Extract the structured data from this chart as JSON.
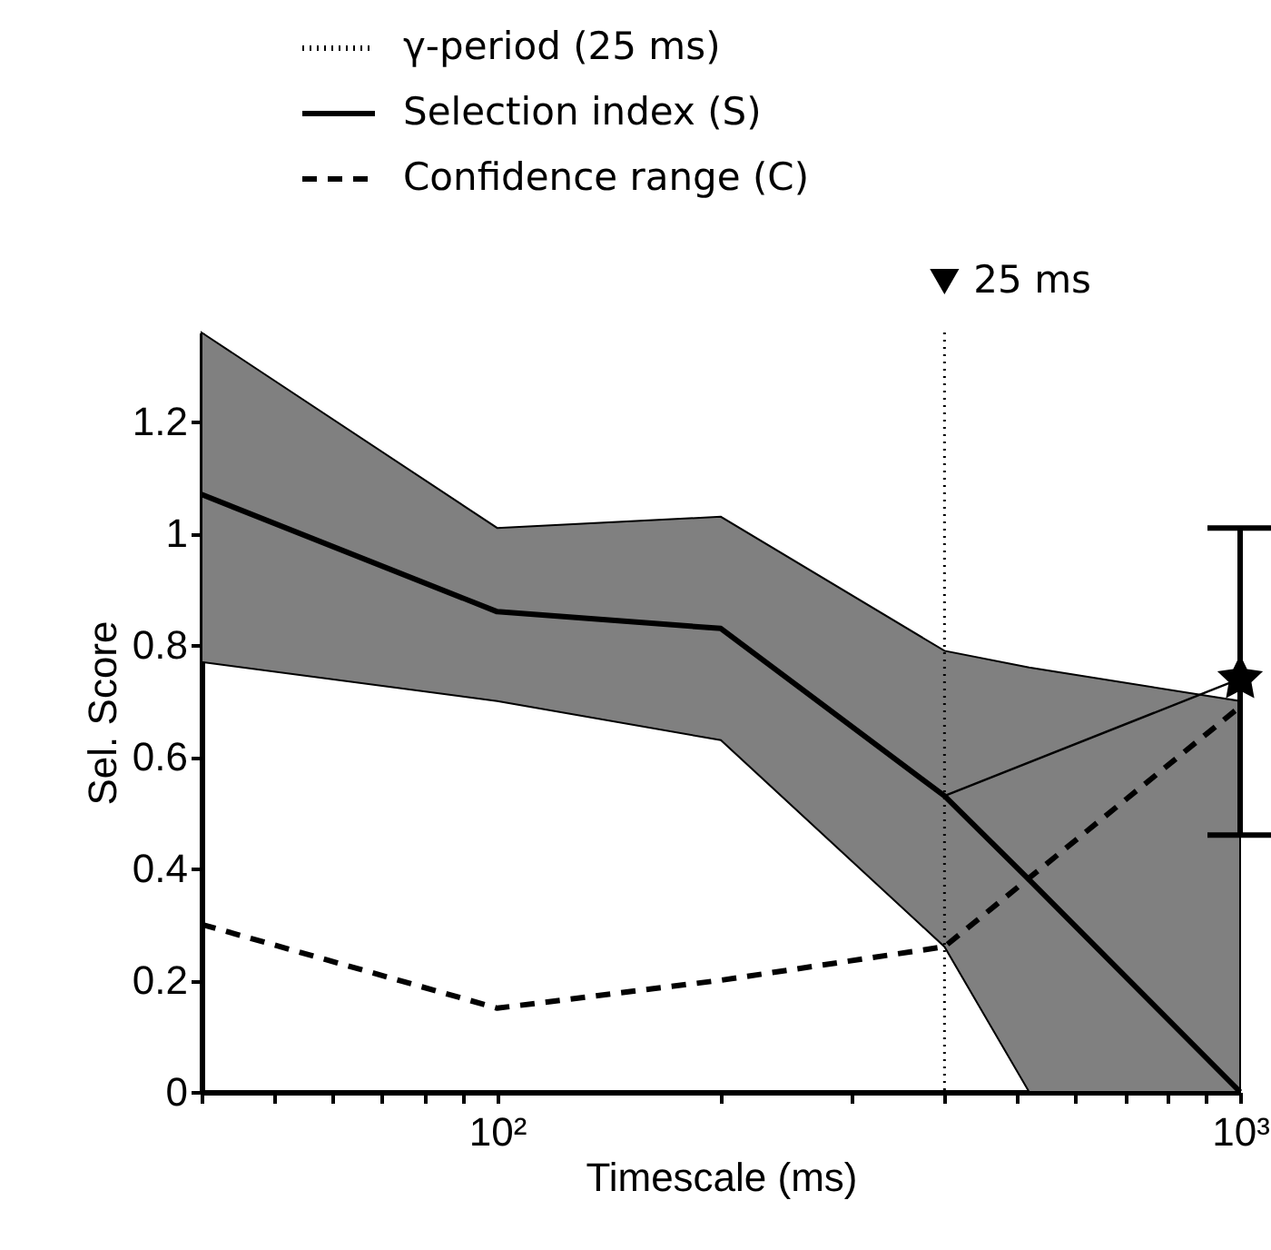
{
  "chart_data": {
    "type": "line",
    "xlabel": "Timescale (ms)",
    "ylabel": "Sel. Score",
    "log": "x",
    "legend": "top left",
    "grid": false,
    "xlim": [
      40,
      1000
    ],
    "ylim": [
      0,
      1.36
    ],
    "xticks": [
      {
        "value": 40,
        "label": null
      },
      {
        "value": 50,
        "label": null
      },
      {
        "value": 60,
        "label": null
      },
      {
        "value": 70,
        "label": null
      },
      {
        "value": 80,
        "label": null
      },
      {
        "value": 90,
        "label": null
      },
      {
        "value": 100,
        "label": "10²"
      },
      {
        "value": 200,
        "label": null
      },
      {
        "value": 300,
        "label": null
      },
      {
        "value": 400,
        "label": null
      },
      {
        "value": 500,
        "label": null
      },
      {
        "value": 600,
        "label": null
      },
      {
        "value": 700,
        "label": null
      },
      {
        "value": 800,
        "label": null
      },
      {
        "value": 900,
        "label": null
      },
      {
        "value": 1000,
        "label": "10³"
      }
    ],
    "yticks": [
      0,
      0.2,
      0.4,
      0.6,
      0.8,
      {
        "value": 1,
        "label": "1"
      },
      1.2
    ],
    "ref_lines": [
      {
        "axis": "x",
        "value": 400,
        "label": "γ-period (25 ms)",
        "color": "#000000",
        "line_style": "dotted"
      }
    ],
    "annotations": [
      "25 ms"
    ],
    "series": [
      {
        "name": "Selection index (S)",
        "color": "#000000",
        "line_style": "solid",
        "x": [
          40,
          100,
          200,
          400,
          520,
          1000
        ],
        "values": [
          1.07,
          0.86,
          0.83,
          0.53,
          0.38,
          0
        ],
        "lower": [
          0.77,
          0.7,
          0.63,
          0.26,
          0,
          0
        ],
        "upper": [
          1.36,
          1.01,
          1.03,
          0.79,
          0.76,
          0.7
        ]
      },
      {
        "name": "Confidence range (C)",
        "color": "#000000",
        "line_style": "dashed",
        "x": [
          40,
          100,
          200,
          400,
          1000
        ],
        "values": [
          0.3,
          0.15,
          0.2,
          0.26,
          0.69
        ]
      },
      {
        "color": "#000000",
        "line_style": "solid",
        "x": [
          400,
          1000
        ],
        "values": [
          0.53,
          0.74
        ]
      },
      {
        "type": "scatter",
        "color": "#000000",
        "marker": "star",
        "x": [
          1000
        ],
        "values": [
          0.74
        ],
        "errors": [
          [
            0.46,
            1.01
          ]
        ]
      }
    ]
  }
}
